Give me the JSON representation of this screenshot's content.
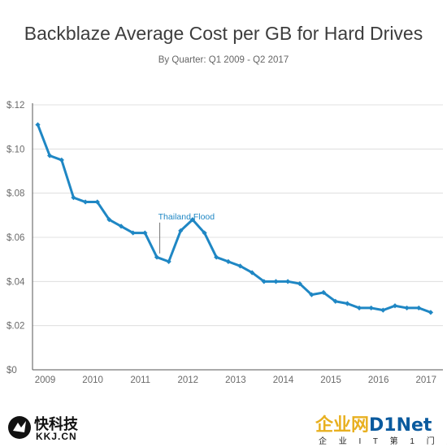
{
  "chart_data": {
    "type": "line",
    "title": "Backblaze Average Cost per GB for Hard Drives",
    "subtitle": "By Quarter: Q1 2009 - Q2 2017",
    "ylim": [
      0,
      0.12
    ],
    "yticks": [
      0,
      0.02,
      0.04,
      0.06,
      0.08,
      0.1,
      0.12
    ],
    "ytick_labels": [
      "$0",
      "$.02",
      "$.04",
      "$.06",
      "$.08",
      "$.10",
      "$.12"
    ],
    "xticks": [
      "2009",
      "2010",
      "2011",
      "2012",
      "2013",
      "2014",
      "2015",
      "2016",
      "2017"
    ],
    "grid": "horizontal",
    "line_color": "#1f87c4",
    "x": [
      "Q1 2009",
      "Q2 2009",
      "Q3 2009",
      "Q4 2009",
      "Q1 2010",
      "Q2 2010",
      "Q3 2010",
      "Q4 2010",
      "Q1 2011",
      "Q2 2011",
      "Q3 2011",
      "Q4 2011",
      "Q1 2012",
      "Q2 2012",
      "Q3 2012",
      "Q4 2012",
      "Q1 2013",
      "Q2 2013",
      "Q3 2013",
      "Q4 2013",
      "Q1 2014",
      "Q2 2014",
      "Q3 2014",
      "Q4 2014",
      "Q1 2015",
      "Q2 2015",
      "Q3 2015",
      "Q4 2015",
      "Q1 2016",
      "Q2 2016",
      "Q3 2016",
      "Q4 2016",
      "Q1 2017",
      "Q2 2017"
    ],
    "values": [
      0.111,
      0.097,
      0.095,
      0.078,
      0.076,
      0.076,
      0.068,
      0.065,
      0.062,
      0.062,
      0.051,
      0.049,
      0.063,
      0.068,
      0.062,
      0.051,
      0.049,
      0.047,
      0.044,
      0.04,
      0.04,
      0.04,
      0.039,
      0.034,
      0.035,
      0.031,
      0.03,
      0.028,
      0.028,
      0.027,
      0.029,
      0.028,
      0.028,
      0.026
    ],
    "annotations": [
      {
        "text": "Thailand Flood",
        "x": "Q4 2011",
        "color": "#1f87c4"
      }
    ]
  },
  "watermarks": {
    "left_name": "快科技",
    "left_sub": "KKJ.CN",
    "right_brand_a": "企业网",
    "right_brand_b": "D1Net",
    "right_sub": "企 业 I T 第 1 门 户"
  }
}
